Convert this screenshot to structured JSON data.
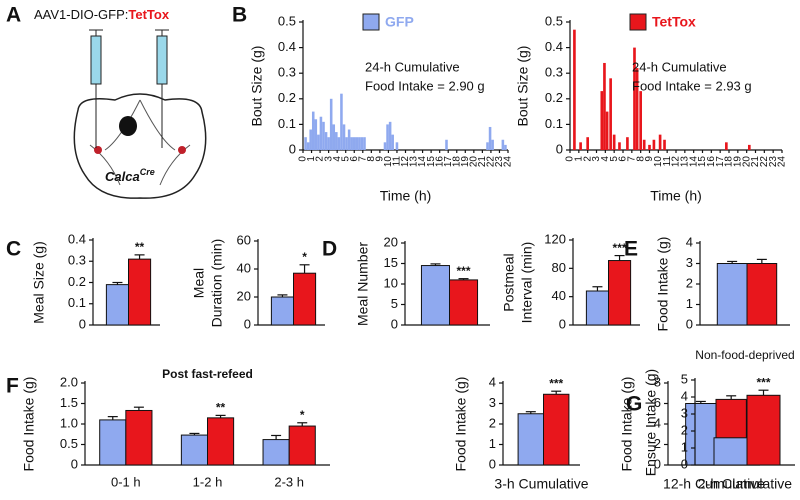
{
  "panels": [
    "A",
    "B",
    "C",
    "D",
    "E",
    "F",
    "G"
  ],
  "diagram": {
    "vector": "AAV1-DIO-GFP:",
    "toxin": "TetTox",
    "gene": "Calca",
    "gene_superscript": "Cre"
  },
  "chart_data": [
    {
      "type": "bar",
      "ylabel": "Bout Size (g)",
      "xlabel": "Time (h)",
      "annotation": [
        "24-h Cumulative",
        "Food Intake = 2.90 g"
      ],
      "x": [
        0.3,
        0.6,
        0.9,
        1.2,
        1.5,
        1.8,
        2.1,
        2.4,
        2.7,
        3.0,
        3.3,
        3.6,
        3.9,
        4.2,
        4.5,
        4.8,
        5.1,
        5.4,
        5.7,
        6.0,
        6.3,
        6.6,
        6.9,
        7.2,
        9.6,
        9.9,
        10.2,
        10.5,
        11.0,
        16.8,
        21.6,
        21.9,
        22.2,
        23.4,
        23.7
      ],
      "series": [
        {
          "name": "GFP",
          "color": "#8fa9ef",
          "values": [
            0.05,
            0.03,
            0.08,
            0.15,
            0.12,
            0.06,
            0.13,
            0.11,
            0.07,
            0.05,
            0.2,
            0.1,
            0.07,
            0.05,
            0.22,
            0.1,
            0.05,
            0.08,
            0.05,
            0.05,
            0.05,
            0.05,
            0.05,
            0.05,
            0.03,
            0.1,
            0.11,
            0.06,
            0.03,
            0.04,
            0.03,
            0.09,
            0.04,
            0.04,
            0.02
          ]
        }
      ],
      "xlim": [
        0,
        24
      ],
      "xticks": [
        0,
        1,
        2,
        3,
        4,
        5,
        6,
        7,
        8,
        9,
        10,
        11,
        12,
        13,
        14,
        15,
        16,
        17,
        18,
        19,
        20,
        21,
        22,
        23,
        24
      ],
      "ylim": [
        0,
        0.5
      ],
      "yticks": [
        0,
        0.1,
        0.2,
        0.3,
        0.4,
        0.5
      ]
    },
    {
      "type": "bar",
      "ylabel": "Bout Size (g)",
      "xlabel": "Time (h)",
      "annotation": [
        "24-h Cumulative",
        "Food Intake = 2.93 g"
      ],
      "x": [
        0.5,
        1.2,
        2.0,
        3.6,
        3.9,
        4.2,
        4.6,
        5.0,
        5.6,
        6.5,
        7.3,
        7.6,
        8.0,
        8.4,
        9.0,
        9.5,
        10.2,
        10.7,
        17.7,
        20.3
      ],
      "series": [
        {
          "name": "TetTox",
          "color": "#e8161c",
          "values": [
            0.47,
            0.03,
            0.05,
            0.23,
            0.34,
            0.15,
            0.28,
            0.06,
            0.03,
            0.05,
            0.4,
            0.32,
            0.23,
            0.04,
            0.02,
            0.04,
            0.06,
            0.04,
            0.03,
            0.02
          ]
        }
      ],
      "xlim": [
        0,
        24
      ],
      "xticks": [
        0,
        1,
        2,
        3,
        4,
        5,
        6,
        7,
        8,
        9,
        10,
        11,
        12,
        13,
        14,
        15,
        16,
        17,
        18,
        19,
        20,
        21,
        22,
        23,
        24
      ],
      "ylim": [
        0,
        0.5
      ],
      "yticks": [
        0,
        0.1,
        0.2,
        0.3,
        0.4,
        0.5
      ]
    },
    {
      "type": "bar",
      "ylabel": [
        "Meal Size (g)"
      ],
      "values": [
        0.19,
        0.31
      ],
      "errors": [
        0.01,
        0.02
      ],
      "significance": [
        null,
        "**"
      ],
      "colors": [
        "#8fa9ef",
        "#e8161c"
      ],
      "ylim": [
        0,
        0.4
      ],
      "yticks": [
        0,
        0.1,
        0.2,
        0.3,
        0.4
      ]
    },
    {
      "type": "bar",
      "ylabel": [
        "Meal",
        "Duration (min)"
      ],
      "values": [
        20,
        37
      ],
      "errors": [
        1.5,
        6
      ],
      "significance": [
        null,
        "*"
      ],
      "colors": [
        "#8fa9ef",
        "#e8161c"
      ],
      "ylim": [
        0,
        60
      ],
      "yticks": [
        0,
        20,
        40,
        60
      ]
    },
    {
      "type": "bar",
      "ylabel": [
        "Meal Number"
      ],
      "values": [
        14.5,
        11
      ],
      "errors": [
        0.4,
        0.3
      ],
      "significance": [
        null,
        "***"
      ],
      "colors": [
        "#8fa9ef",
        "#e8161c"
      ],
      "ylim": [
        0,
        20
      ],
      "yticks": [
        0,
        5,
        10,
        15,
        20
      ]
    },
    {
      "type": "bar",
      "ylabel": [
        "Postmeal",
        "Interval (min)"
      ],
      "values": [
        48,
        91
      ],
      "errors": [
        6,
        7
      ],
      "significance": [
        null,
        "***"
      ],
      "colors": [
        "#8fa9ef",
        "#e8161c"
      ],
      "ylim": [
        0,
        120
      ],
      "yticks": [
        0,
        40,
        80,
        120
      ]
    },
    {
      "type": "bar",
      "ylabel": [
        "Food Intake (g)"
      ],
      "values": [
        3.0,
        3.0
      ],
      "errors": [
        0.1,
        0.2
      ],
      "colors": [
        "#8fa9ef",
        "#e8161c"
      ],
      "ylim": [
        0,
        4
      ],
      "yticks": [
        0,
        1,
        2,
        3,
        4
      ]
    },
    {
      "type": "bar",
      "title": "Post fast-refeed",
      "ylabel": [
        "Food Intake (g)"
      ],
      "categories": [
        "0-1 h",
        "1-2 h",
        "2-3 h"
      ],
      "series": [
        {
          "color": "#8fa9ef",
          "values": [
            1.1,
            0.73,
            0.62
          ],
          "errors": [
            0.08,
            0.04,
            0.1
          ]
        },
        {
          "color": "#e8161c",
          "values": [
            1.33,
            1.15,
            0.95
          ],
          "errors": [
            0.08,
            0.06,
            0.08
          ],
          "significance": [
            null,
            "**",
            "*"
          ]
        }
      ],
      "ylim": [
        0,
        2
      ],
      "yticks": [
        0,
        0.5,
        {
          "value": 1,
          "label": "1.0"
        },
        1.5,
        {
          "value": 2,
          "label": "2.0"
        }
      ]
    },
    {
      "type": "bar",
      "ylabel": [
        "Food Intake (g)"
      ],
      "xlabel": "3-h Cumulative",
      "values": [
        2.5,
        3.45
      ],
      "errors": [
        0.1,
        0.15
      ],
      "significance": [
        null,
        "***"
      ],
      "colors": [
        "#8fa9ef",
        "#e8161c"
      ],
      "ylim": [
        0,
        4
      ],
      "yticks": [
        0,
        1,
        2,
        3,
        4
      ]
    },
    {
      "type": "bar",
      "ylabel": [
        "Food Intake (g)"
      ],
      "xlabel": "12-h Cumulative",
      "values": [
        6.0,
        6.4
      ],
      "errors": [
        0.2,
        0.35
      ],
      "colors": [
        "#8fa9ef",
        "#e8161c"
      ],
      "ylim": [
        0,
        8
      ],
      "yticks": [
        0,
        2,
        4,
        6,
        8
      ]
    },
    {
      "type": "bar",
      "title": "Non-food-deprived",
      "ylabel": [
        "Ensure Intake (g)"
      ],
      "xlabel": "2-h Cumulative",
      "values": [
        1.6,
        4.1
      ],
      "errors": [
        null,
        0.3
      ],
      "significance": [
        null,
        "***"
      ],
      "colors": [
        "#8fa9ef",
        "#e8161c"
      ],
      "ylim": [
        0,
        5
      ],
      "yticks": [
        0,
        1,
        2,
        3,
        4,
        5
      ]
    }
  ]
}
